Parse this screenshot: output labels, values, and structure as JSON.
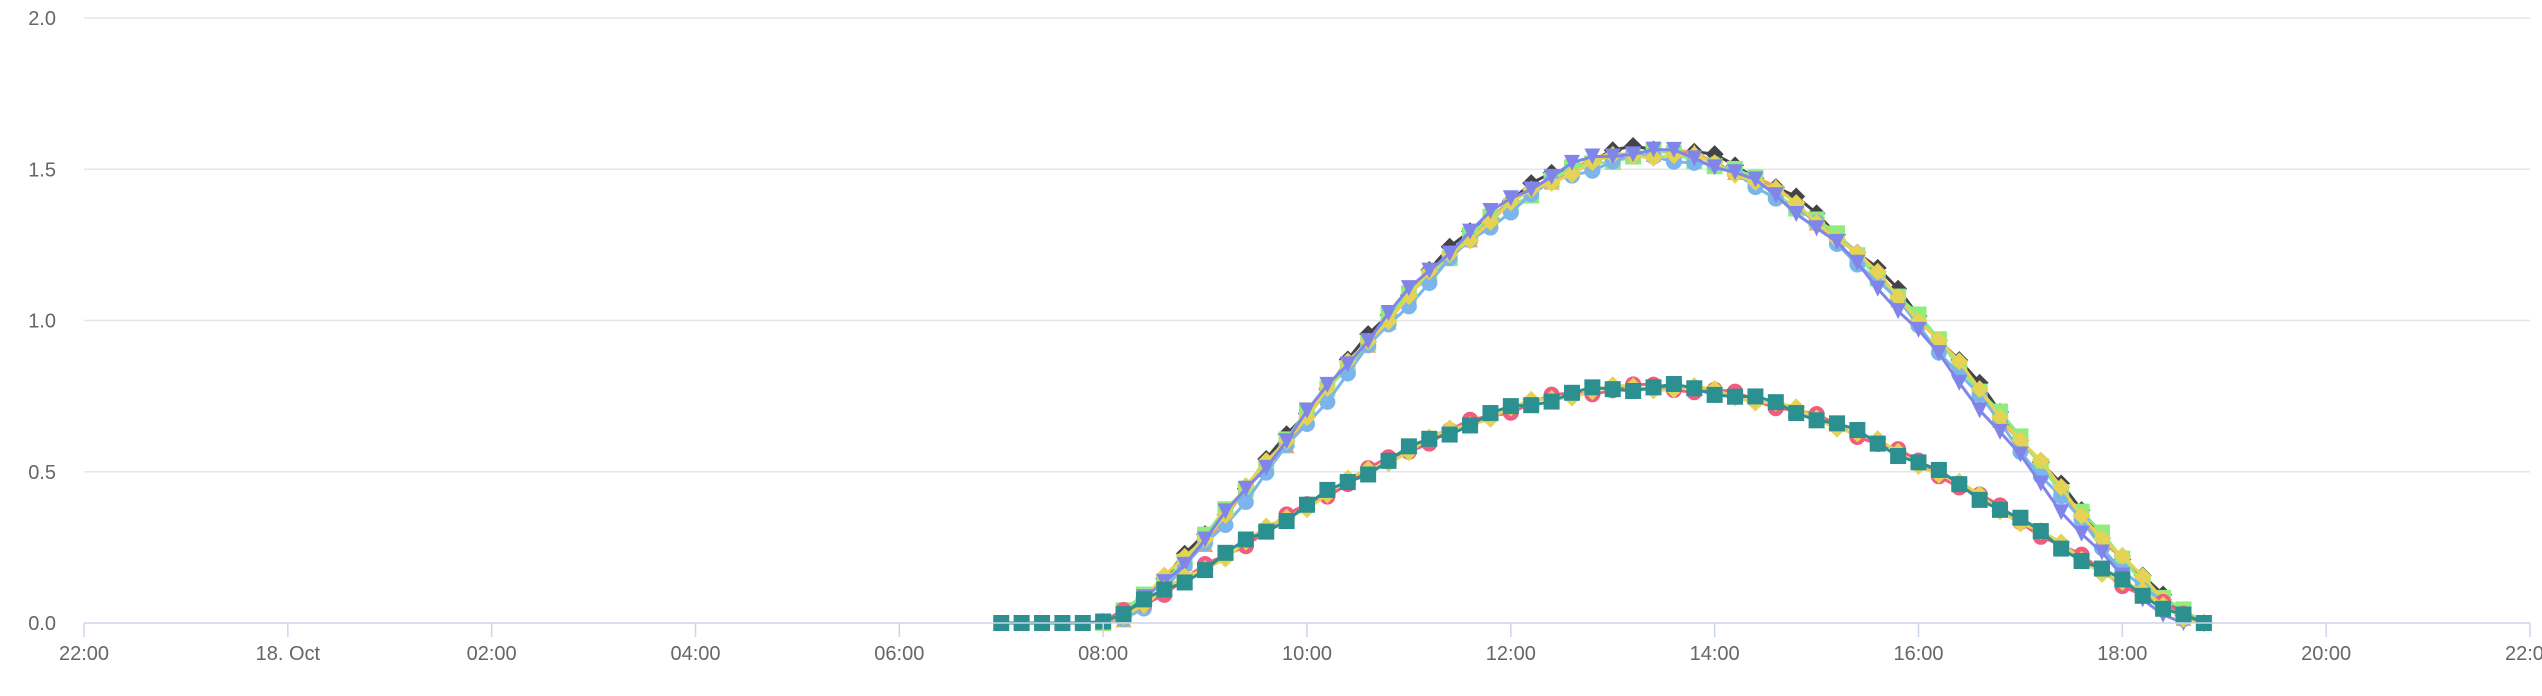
{
  "chart_data": {
    "type": "line",
    "title": "",
    "xlabel": "",
    "ylabel": "",
    "xlim": [
      -2,
      22
    ],
    "ylim": [
      0,
      2.0
    ],
    "grid": true,
    "legend": "none",
    "x_ticks": [
      {
        "value": -2,
        "label": "22:00"
      },
      {
        "value": 0,
        "label": "18. Oct"
      },
      {
        "value": 2,
        "label": "02:00"
      },
      {
        "value": 4,
        "label": "04:00"
      },
      {
        "value": 6,
        "label": "06:00"
      },
      {
        "value": 8,
        "label": "08:00"
      },
      {
        "value": 10,
        "label": "10:00"
      },
      {
        "value": 12,
        "label": "12:00"
      },
      {
        "value": 14,
        "label": "14:00"
      },
      {
        "value": 16,
        "label": "16:00"
      },
      {
        "value": 18,
        "label": "18:00"
      },
      {
        "value": 20,
        "label": "20:00"
      },
      {
        "value": 22,
        "label": "22:00"
      }
    ],
    "y_ticks": [
      {
        "value": 0,
        "label": "0.0"
      },
      {
        "value": 0.5,
        "label": "0.5"
      },
      {
        "value": 1.0,
        "label": "1.0"
      },
      {
        "value": 1.5,
        "label": "1.5"
      },
      {
        "value": 2.0,
        "label": "2.0"
      }
    ],
    "series": [
      {
        "color": "#434348",
        "marker": "diamond",
        "profile": "high",
        "start": 8.0,
        "end": 18.8,
        "peak_x": 13.4,
        "peak_y": 1.57
      },
      {
        "color": "#f7a35c",
        "marker": "triangle",
        "profile": "high",
        "start": 8.05,
        "end": 18.75,
        "peak_x": 13.3,
        "peak_y": 1.56
      },
      {
        "color": "#90ed7d",
        "marker": "square",
        "profile": "high",
        "start": 8.0,
        "end": 18.8,
        "peak_x": 13.5,
        "peak_y": 1.55
      },
      {
        "color": "#7cb5ec",
        "marker": "circle",
        "profile": "high",
        "start": 8.1,
        "end": 18.7,
        "peak_x": 13.4,
        "peak_y": 1.54
      },
      {
        "color": "#e4d354",
        "marker": "diamond",
        "profile": "high",
        "start": 8.0,
        "end": 18.8,
        "peak_x": 13.4,
        "peak_y": 1.55
      },
      {
        "color": "#8085e9",
        "marker": "triangle-down",
        "profile": "high",
        "start": 8.05,
        "end": 18.6,
        "peak_x": 13.5,
        "peak_y": 1.56
      },
      {
        "color": "#f15c80",
        "marker": "circle",
        "profile": "low",
        "start": 7.9,
        "end": 18.8,
        "peak_x": 13.3,
        "peak_y": 0.78
      },
      {
        "color": "#e4d354",
        "marker": "diamond",
        "profile": "low",
        "start": 7.9,
        "end": 18.8,
        "peak_x": 13.4,
        "peak_y": 0.78
      },
      {
        "color": "#2b908f",
        "marker": "square",
        "profile": "low",
        "start": 7.0,
        "end": 18.8,
        "peak_x": 13.4,
        "peak_y": 0.78
      }
    ]
  }
}
